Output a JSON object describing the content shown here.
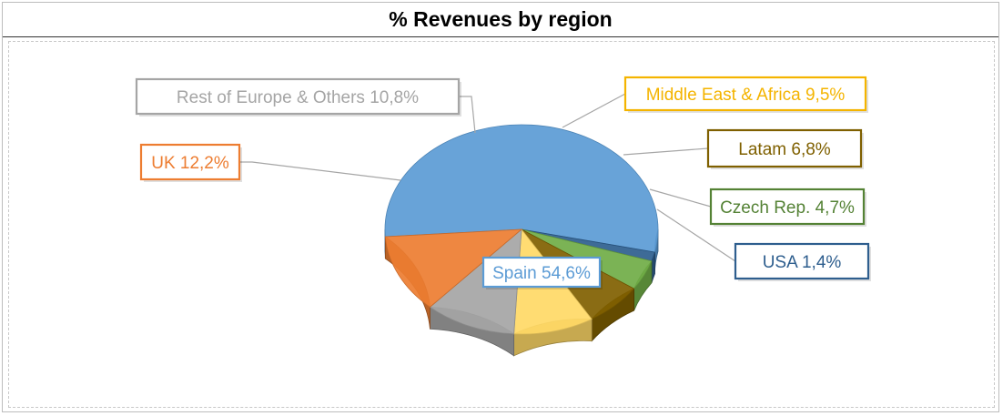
{
  "chart_data": {
    "type": "pie",
    "title": "% Revenues by region",
    "label_format": "{name} {value}%",
    "slices": [
      {
        "name": "Spain",
        "value": "54,6",
        "color": "#5b9bd5",
        "label_color": "#5b9bd5"
      },
      {
        "name": "USA",
        "value": "1,4",
        "color": "#2e5e8e",
        "label_color": "#2e5e8e"
      },
      {
        "name": "Czech Rep.",
        "value": "4,7",
        "color": "#70ad47",
        "label_color": "#548235"
      },
      {
        "name": "Latam",
        "value": "6,8",
        "color": "#806000",
        "label_color": "#7f6000"
      },
      {
        "name": "Middle East & Africa",
        "value": "9,5",
        "color": "#ffd966",
        "label_color": "#f4b400"
      },
      {
        "name": "Rest of Europe & Others",
        "value": "10,8",
        "color": "#a5a5a5",
        "label_color": "#a5a5a5"
      },
      {
        "name": "UK",
        "value": "12,2",
        "color": "#ed7d31",
        "label_color": "#ed7d31"
      }
    ]
  }
}
